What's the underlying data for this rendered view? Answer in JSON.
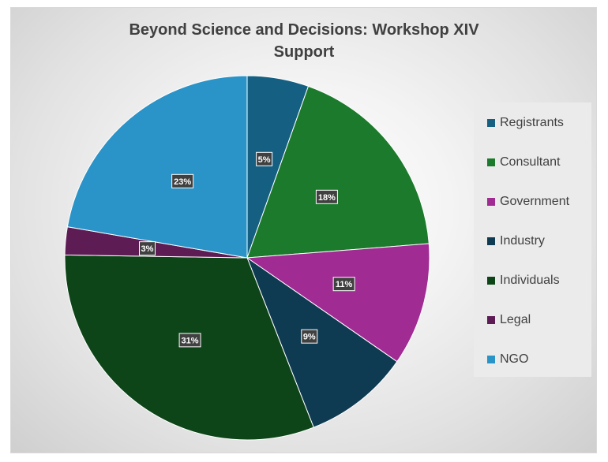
{
  "chart_data": {
    "type": "pie",
    "title": [
      "Beyond Science and Decisions: Workshop XIV",
      "Support"
    ],
    "categories": [
      "Registrants",
      "Consultant",
      "Government",
      "Industry",
      "Individuals",
      "Legal",
      "NGO"
    ],
    "values": [
      5.5,
      18.5,
      11,
      9.5,
      31.5,
      2.5,
      22.5
    ],
    "data_labels": [
      "5%",
      "18%",
      "11%",
      "9%",
      "31%",
      "3%",
      "23%"
    ],
    "colors": [
      "#156082",
      "#1b7a2b",
      "#a02b93",
      "#0e3a52",
      "#0d4518",
      "#5e1c55",
      "#2a93c8"
    ],
    "start_angle_deg": 0,
    "direction": "clockwise",
    "legend_position": "right"
  }
}
